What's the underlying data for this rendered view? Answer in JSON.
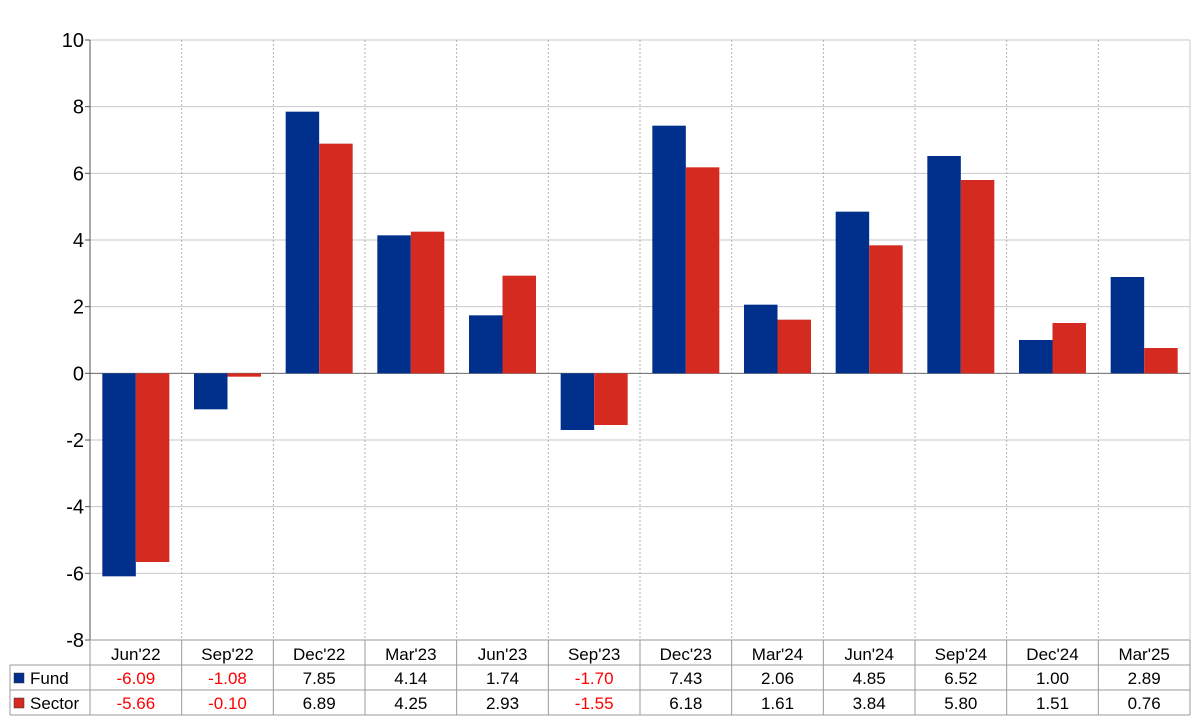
{
  "chart_data": {
    "type": "bar",
    "categories": [
      "Jun'22",
      "Sep'22",
      "Dec'22",
      "Mar'23",
      "Jun'23",
      "Sep'23",
      "Dec'23",
      "Mar'24",
      "Jun'24",
      "Sep'24",
      "Dec'24",
      "Mar'25"
    ],
    "series": [
      {
        "name": "Fund",
        "color": "#00308c",
        "values": [
          -6.09,
          -1.08,
          7.85,
          4.14,
          1.74,
          -1.7,
          7.43,
          2.06,
          4.85,
          6.52,
          1.0,
          2.89
        ],
        "labels": [
          "-6.09",
          "-1.08",
          "7.85",
          "4.14",
          "1.74",
          "-1.70",
          "7.43",
          "2.06",
          "4.85",
          "6.52",
          "1.00",
          "2.89"
        ]
      },
      {
        "name": "Sector",
        "color": "#d42a20",
        "values": [
          -5.66,
          -0.1,
          6.89,
          4.25,
          2.93,
          -1.55,
          6.18,
          1.61,
          3.84,
          5.8,
          1.51,
          0.76
        ],
        "labels": [
          "-5.66",
          "-0.10",
          "6.89",
          "4.25",
          "2.93",
          "-1.55",
          "6.18",
          "1.61",
          "3.84",
          "5.80",
          "1.51",
          "0.76"
        ]
      }
    ],
    "ylim": [
      -8,
      10
    ],
    "yticks": [
      "-8",
      "-6",
      "-4",
      "-2",
      "0",
      "2",
      "4",
      "6",
      "8",
      "10"
    ],
    "grid": true,
    "negative_label_color": "#ff0000",
    "legend": "table-below"
  }
}
